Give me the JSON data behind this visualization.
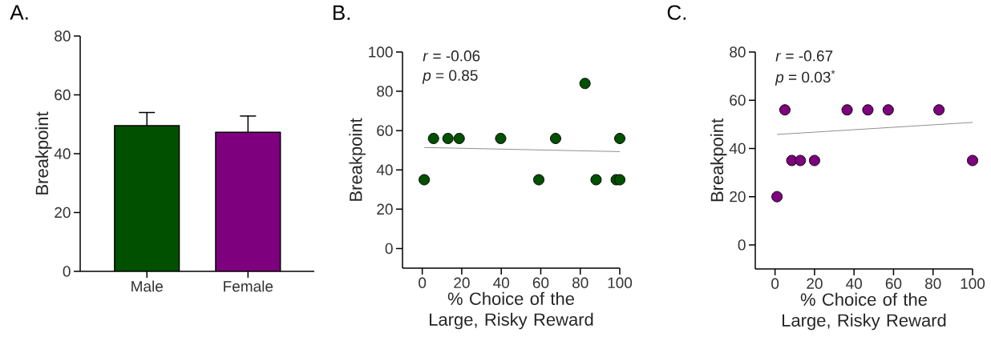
{
  "chart_data": [
    {
      "type": "bar",
      "title": "A.",
      "ylabel": "Breakpoint",
      "categories": [
        "Male",
        "Female"
      ],
      "values": [
        49.5,
        47.3
      ],
      "errors": [
        4.5,
        5.5
      ],
      "colors": [
        "#005000",
        "#7f007f"
      ],
      "ylim": [
        0,
        80
      ],
      "yticks": [
        0,
        20,
        40,
        60,
        80
      ]
    },
    {
      "type": "scatter",
      "title": "B.",
      "xlabel": "% Choice of the Large, Risky Reward",
      "ylabel": "Breakpoint",
      "annotations": [
        "*r* = -0.06",
        "*p* = 0.85"
      ],
      "xlim": [
        -10,
        100
      ],
      "xticks": [
        0,
        20,
        40,
        60,
        80,
        100
      ],
      "ylim": [
        -10,
        100
      ],
      "yticks": [
        0,
        20,
        40,
        60,
        80,
        100
      ],
      "series": [
        {
          "color": "#005000",
          "marker": "circle",
          "x": [
            1,
            5.7,
            13,
            18.7,
            39.7,
            59,
            67.5,
            82.4,
            88,
            98.2,
            100,
            100
          ],
          "values": [
            35,
            56,
            56,
            56,
            56,
            35,
            56,
            84,
            35,
            35,
            56,
            35
          ]
        },
        {
          "type": "line",
          "marker": "none",
          "color": "#909090",
          "x": [
            1,
            100
          ],
          "values": [
            51.4,
            49.3
          ]
        }
      ]
    },
    {
      "type": "scatter",
      "title": "C.",
      "xlabel": "% Choice of the Large, Risky Reward",
      "ylabel": "Breakpoint",
      "annotations": [
        "*r* = -0.67",
        "*p* = 0.03$^{*}$"
      ],
      "xlim": [
        -10,
        100
      ],
      "xticks": [
        0,
        20,
        40,
        60,
        80,
        100
      ],
      "ylim": [
        -10,
        80
      ],
      "yticks": [
        0,
        20,
        40,
        60,
        80
      ],
      "series": [
        {
          "color": "#7f007f",
          "marker": "circle",
          "x": [
            1,
            5,
            8.5,
            12.8,
            20,
            36.5,
            47,
            57.3,
            83,
            100
          ],
          "values": [
            20,
            56,
            35,
            35,
            35,
            56,
            56,
            56,
            56,
            35
          ]
        },
        {
          "type": "line",
          "marker": "none",
          "color": "#909090",
          "x": [
            1,
            100
          ],
          "values": [
            45.8,
            50.8
          ]
        }
      ]
    }
  ]
}
